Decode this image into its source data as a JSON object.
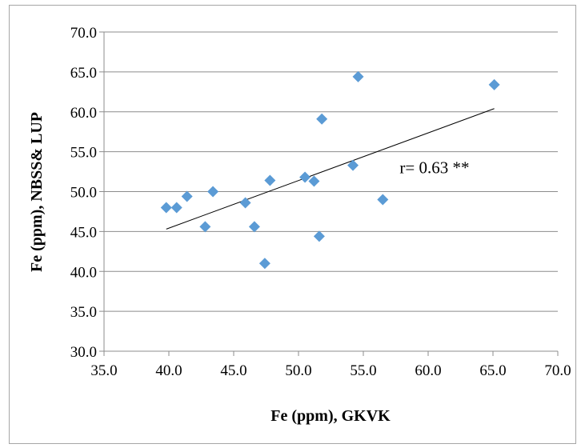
{
  "chart_data": {
    "type": "scatter",
    "xlabel": "Fe (ppm), GKVK",
    "ylabel": "Fe (ppm), NBSS& LUP",
    "xlim": [
      35.0,
      70.0
    ],
    "ylim": [
      30.0,
      70.0
    ],
    "x_ticks": [
      "35.0",
      "40.0",
      "45.0",
      "50.0",
      "55.0",
      "60.0",
      "65.0",
      "70.0"
    ],
    "y_ticks": [
      "30.0",
      "35.0",
      "40.0",
      "45.0",
      "50.0",
      "55.0",
      "60.0",
      "65.0",
      "70.0"
    ],
    "grid": "horizontal",
    "legend": "none",
    "marker": "diamond",
    "marker_color": "#5b9bd5",
    "series": [
      {
        "x": [
          39.8,
          40.6,
          41.4,
          42.8,
          43.4,
          45.9,
          46.6,
          47.4,
          47.8,
          50.5,
          51.2,
          51.6,
          51.8,
          54.2,
          54.6,
          56.5,
          65.1
        ],
        "y": [
          48.0,
          48.0,
          49.4,
          45.6,
          50.0,
          48.6,
          45.6,
          41.0,
          51.4,
          51.8,
          51.3,
          44.4,
          59.1,
          53.3,
          64.4,
          49.0,
          63.4
        ]
      }
    ],
    "trendline": {
      "x": [
        39.8,
        65.1
      ],
      "y": [
        45.3,
        60.4
      ],
      "color": "#000000"
    },
    "annotation": {
      "text": "r= 0.63 **",
      "x": 57.8,
      "y": 52.3
    }
  }
}
